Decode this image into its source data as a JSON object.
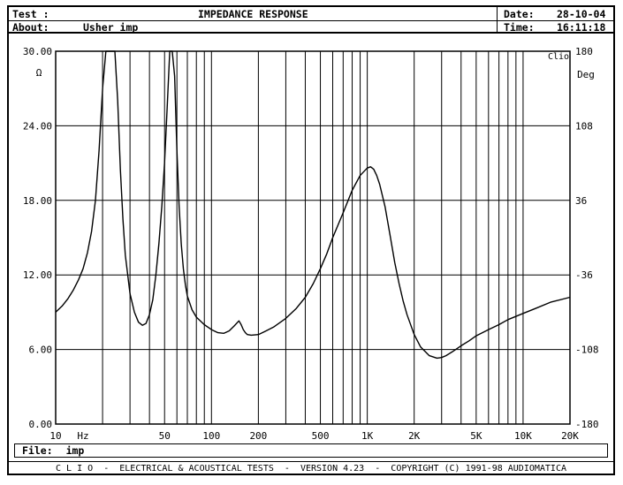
{
  "header": {
    "test_label": "Test :",
    "about_label": "About:",
    "about_value": "Usher imp",
    "title": "IMPEDANCE RESPONSE",
    "date_label": "Date:",
    "date_value": "28-10-04",
    "time_label": "Time:",
    "time_value": "16:11:18"
  },
  "file": {
    "label": "File:",
    "value": "imp"
  },
  "footer": {
    "text": "C L I O  -  ELECTRICAL & ACOUSTICAL TESTS  -  VERSION 4.23  -  COPYRIGHT (C) 1991-98 AUDIOMATICA"
  },
  "chart_data": {
    "type": "line",
    "title": "IMPEDANCE RESPONSE",
    "xlabel": "Hz",
    "ylabel": "Ω",
    "y2label": "Deg",
    "corner_label": "Clio",
    "x_scale": "log",
    "xlim": [
      10,
      20000
    ],
    "ylim": [
      0,
      30
    ],
    "y2lim": [
      -180,
      180
    ],
    "grid": true,
    "x_ticks": [
      "10",
      "50",
      "100",
      "200",
      "500",
      "1K",
      "2K",
      "5K",
      "10K",
      "20K"
    ],
    "x_tick_values": [
      10,
      50,
      100,
      200,
      500,
      1000,
      2000,
      5000,
      10000,
      20000
    ],
    "y_ticks": [
      "0.00",
      "6.00",
      "12.00",
      "18.00",
      "24.00",
      "30.00"
    ],
    "y_tick_values": [
      0,
      6,
      12,
      18,
      24,
      30
    ],
    "y2_ticks": [
      "-180",
      "-108",
      "-36",
      "36",
      "108",
      "180"
    ],
    "series": [
      {
        "x": [
          10,
          11,
          12,
          13,
          14,
          15,
          16,
          17,
          18,
          19,
          20,
          21,
          22,
          23,
          24,
          25,
          26,
          27,
          28,
          30,
          32,
          34,
          36,
          38,
          40,
          42,
          44,
          46,
          48,
          50,
          52,
          54,
          56,
          58,
          60,
          62,
          64,
          66,
          68,
          70,
          75,
          80,
          90,
          100,
          110,
          120,
          130,
          140,
          150,
          155,
          160,
          165,
          170,
          180,
          200,
          220,
          250,
          300,
          350,
          400,
          450,
          500,
          550,
          600,
          700,
          800,
          900,
          1000,
          1050,
          1100,
          1150,
          1200,
          1300,
          1400,
          1500,
          1600,
          1700,
          1800,
          2000,
          2200,
          2500,
          2800,
          3000,
          3200,
          3500,
          4000,
          4500,
          5000,
          6000,
          7000,
          8000,
          10000,
          12000,
          15000,
          20000
        ],
        "values": [
          9.0,
          9.5,
          10.1,
          10.8,
          11.6,
          12.5,
          13.8,
          15.5,
          18.0,
          22.0,
          27.0,
          30.0,
          30.0,
          30.0,
          30.0,
          26.0,
          20.5,
          16.5,
          13.6,
          10.5,
          9.0,
          8.2,
          7.95,
          8.1,
          8.8,
          10.0,
          12.0,
          14.5,
          17.5,
          21.0,
          25.5,
          30.0,
          30.0,
          28.0,
          22.0,
          17.5,
          14.5,
          12.5,
          11.2,
          10.3,
          9.2,
          8.6,
          8.0,
          7.6,
          7.35,
          7.3,
          7.5,
          7.9,
          8.3,
          8.0,
          7.6,
          7.35,
          7.2,
          7.15,
          7.2,
          7.45,
          7.8,
          8.5,
          9.3,
          10.2,
          11.3,
          12.5,
          13.7,
          15.0,
          17.0,
          18.8,
          20.0,
          20.6,
          20.7,
          20.5,
          20.0,
          19.3,
          17.5,
          15.2,
          13.0,
          11.3,
          9.9,
          8.8,
          7.2,
          6.2,
          5.5,
          5.3,
          5.35,
          5.5,
          5.8,
          6.3,
          6.7,
          7.1,
          7.6,
          8.0,
          8.4,
          8.9,
          9.3,
          9.8,
          10.2
        ]
      }
    ]
  }
}
